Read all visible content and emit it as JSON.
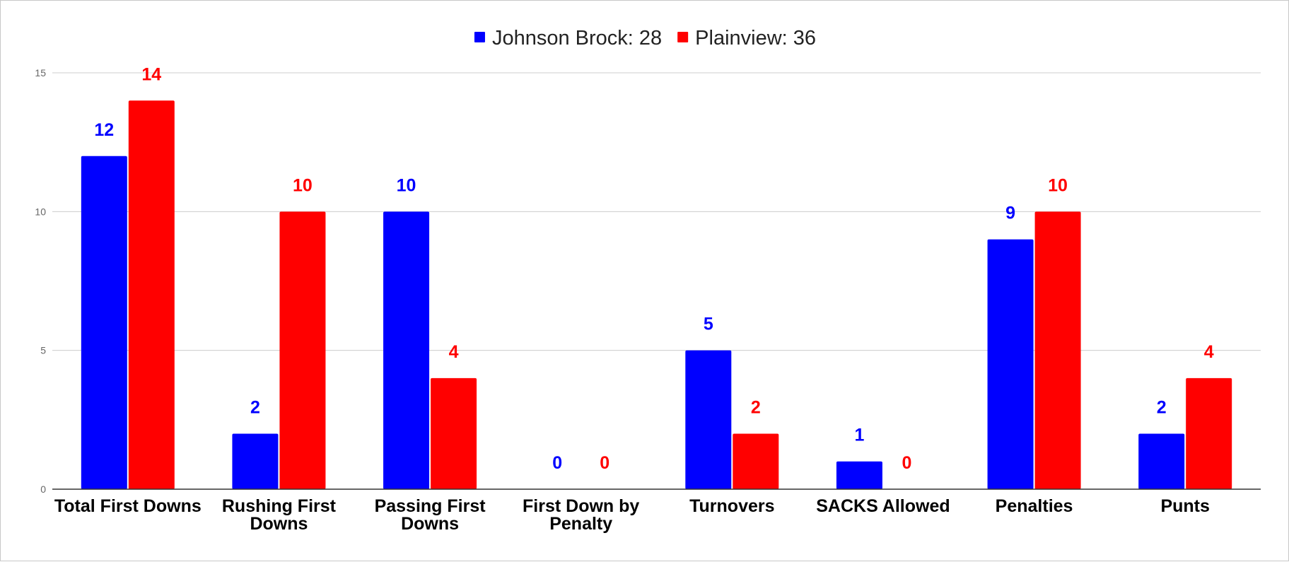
{
  "chart_data": {
    "type": "bar",
    "legend_position": "top",
    "grid": true,
    "ylim": [
      0,
      15
    ],
    "yticks": [
      0,
      5,
      10,
      15
    ],
    "categories": [
      [
        "Total First Downs"
      ],
      [
        "Rushing First",
        "Downs"
      ],
      [
        "Passing First",
        "Downs"
      ],
      [
        "First Down by",
        "Penalty"
      ],
      [
        "Turnovers"
      ],
      [
        "SACKS Allowed"
      ],
      [
        "Penalties"
      ],
      [
        "Punts"
      ]
    ],
    "series": [
      {
        "name": "Johnson Brock: 28",
        "color": "#0000ff",
        "values": [
          12,
          2,
          10,
          0,
          5,
          1,
          9,
          2
        ]
      },
      {
        "name": "Plainview: 36",
        "color": "#ff0000",
        "values": [
          14,
          10,
          4,
          0,
          2,
          0,
          10,
          4
        ]
      }
    ]
  }
}
